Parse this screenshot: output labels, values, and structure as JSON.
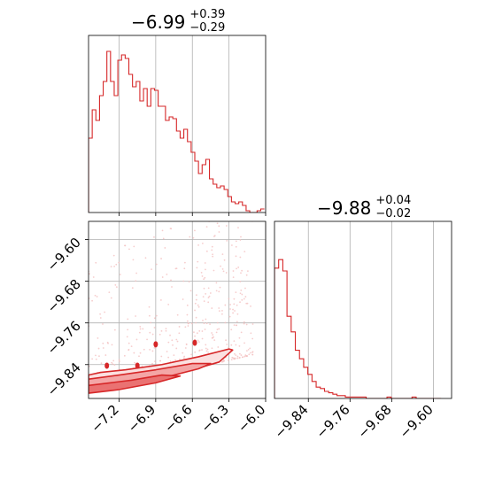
{
  "chart_data": [
    {
      "type": "histogram",
      "panel": "top-left",
      "title": {
        "value": "−6.99",
        "upper": "+0.39",
        "lower": "−0.29"
      },
      "xlim": [
        -7.45,
        -6.0
      ],
      "bins": [
        [
          -7.45,
          0.42
        ],
        [
          -7.42,
          0.58
        ],
        [
          -7.39,
          0.52
        ],
        [
          -7.36,
          0.66
        ],
        [
          -7.33,
          0.74
        ],
        [
          -7.3,
          0.91
        ],
        [
          -7.27,
          0.74
        ],
        [
          -7.24,
          0.66
        ],
        [
          -7.21,
          0.86
        ],
        [
          -7.18,
          0.89
        ],
        [
          -7.15,
          0.87
        ],
        [
          -7.12,
          0.78
        ],
        [
          -7.09,
          0.71
        ],
        [
          -7.06,
          0.74
        ],
        [
          -7.03,
          0.63
        ],
        [
          -7.0,
          0.7
        ],
        [
          -6.97,
          0.6
        ],
        [
          -6.94,
          0.7
        ],
        [
          -6.91,
          0.69
        ],
        [
          -6.88,
          0.6
        ],
        [
          -6.85,
          0.6
        ],
        [
          -6.82,
          0.52
        ],
        [
          -6.79,
          0.54
        ],
        [
          -6.76,
          0.53
        ],
        [
          -6.73,
          0.46
        ],
        [
          -6.7,
          0.42
        ],
        [
          -6.67,
          0.47
        ],
        [
          -6.64,
          0.4
        ],
        [
          -6.61,
          0.34
        ],
        [
          -6.58,
          0.29
        ],
        [
          -6.55,
          0.22
        ],
        [
          -6.52,
          0.27
        ],
        [
          -6.49,
          0.3
        ],
        [
          -6.46,
          0.19
        ],
        [
          -6.43,
          0.16
        ],
        [
          -6.4,
          0.14
        ],
        [
          -6.37,
          0.15
        ],
        [
          -6.34,
          0.13
        ],
        [
          -6.31,
          0.09
        ],
        [
          -6.28,
          0.06
        ],
        [
          -6.25,
          0.05
        ],
        [
          -6.22,
          0.06
        ],
        [
          -6.19,
          0.04
        ],
        [
          -6.16,
          0.01
        ],
        [
          -6.13,
          0.0
        ],
        [
          -6.1,
          0.0
        ],
        [
          -6.07,
          0.01
        ],
        [
          -6.04,
          0.02
        ]
      ],
      "bin_width": 0.03,
      "ylim": [
        0,
        1
      ],
      "grid_x": [
        -7.2,
        -6.9,
        -6.6,
        -6.3
      ]
    },
    {
      "type": "histogram",
      "panel": "bottom-right",
      "title": {
        "value": "−9.88",
        "upper": "+0.04",
        "lower": "−0.02"
      },
      "xlim": [
        -9.905,
        -9.565
      ],
      "xticks": [
        -9.84,
        -9.76,
        -9.68,
        -9.6
      ],
      "xticklabels": [
        "−9.84",
        "−9.76",
        "−9.68",
        "−9.60"
      ],
      "bins": [
        [
          -9.905,
          0.92
        ],
        [
          -9.897,
          0.98
        ],
        [
          -9.889,
          0.9
        ],
        [
          -9.881,
          0.58
        ],
        [
          -9.873,
          0.47
        ],
        [
          -9.865,
          0.34
        ],
        [
          -9.857,
          0.28
        ],
        [
          -9.849,
          0.22
        ],
        [
          -9.841,
          0.17
        ],
        [
          -9.833,
          0.12
        ],
        [
          -9.825,
          0.08
        ],
        [
          -9.817,
          0.07
        ],
        [
          -9.809,
          0.05
        ],
        [
          -9.801,
          0.04
        ],
        [
          -9.793,
          0.03
        ],
        [
          -9.785,
          0.02
        ],
        [
          -9.777,
          0.02
        ],
        [
          -9.769,
          0.01
        ],
        [
          -9.761,
          0.01
        ],
        [
          -9.753,
          0.01
        ],
        [
          -9.745,
          0.01
        ],
        [
          -9.737,
          0.01
        ],
        [
          -9.729,
          0.0
        ],
        [
          -9.721,
          0.0
        ],
        [
          -9.713,
          0.0
        ],
        [
          -9.705,
          0.0
        ],
        [
          -9.697,
          0.0
        ],
        [
          -9.689,
          0.01
        ],
        [
          -9.681,
          0.0
        ],
        [
          -9.673,
          0.0
        ],
        [
          -9.665,
          0.0
        ],
        [
          -9.657,
          0.0
        ],
        [
          -9.649,
          0.0
        ],
        [
          -9.641,
          0.01
        ],
        [
          -9.633,
          0.0
        ],
        [
          -9.625,
          0.0
        ],
        [
          -9.617,
          0.0
        ],
        [
          -9.609,
          0.0
        ],
        [
          -9.601,
          0.0
        ],
        [
          -9.593,
          0.0
        ]
      ],
      "bin_width": 0.008,
      "ylim": [
        0,
        1.25
      ],
      "grid_x": [
        -9.84,
        -9.76,
        -9.68,
        -9.6
      ]
    },
    {
      "type": "scatter",
      "panel": "bottom-left",
      "xlim": [
        -7.45,
        -6.0
      ],
      "ylim": [
        -9.905,
        -9.565
      ],
      "xticks": [
        -7.2,
        -6.9,
        -6.6,
        -6.3,
        -6.0
      ],
      "xticklabels": [
        "−7.2",
        "−6.9",
        "−6.6",
        "−6.3",
        "−6.0"
      ],
      "yticks": [
        -9.6,
        -9.68,
        -9.76,
        -9.84
      ],
      "yticklabels": [
        "−9.60",
        "−9.68",
        "−9.76",
        "−9.84"
      ],
      "grid": true,
      "contours": [
        [
          [
            -7.45,
            -9.893
          ],
          [
            -7.2,
            -9.885
          ],
          [
            -6.9,
            -9.865
          ],
          [
            -6.6,
            -9.85
          ],
          [
            -6.38,
            -9.835
          ],
          [
            -6.27,
            -9.812
          ],
          [
            -6.3,
            -9.81
          ],
          [
            -6.55,
            -9.825
          ],
          [
            -6.85,
            -9.84
          ],
          [
            -7.15,
            -9.85
          ],
          [
            -7.35,
            -9.855
          ],
          [
            -7.45,
            -9.86
          ]
        ],
        [
          [
            -7.45,
            -9.893
          ],
          [
            -7.1,
            -9.88
          ],
          [
            -6.8,
            -9.863
          ],
          [
            -6.55,
            -9.848
          ],
          [
            -6.45,
            -9.838
          ],
          [
            -6.6,
            -9.838
          ],
          [
            -6.9,
            -9.85
          ],
          [
            -7.2,
            -9.86
          ],
          [
            -7.45,
            -9.868
          ]
        ],
        [
          [
            -7.45,
            -9.895
          ],
          [
            -7.2,
            -9.888
          ],
          [
            -6.9,
            -9.875
          ],
          [
            -6.7,
            -9.862
          ],
          [
            -6.85,
            -9.86
          ],
          [
            -7.1,
            -9.87
          ],
          [
            -7.45,
            -9.88
          ]
        ]
      ],
      "contour_islands": [
        [
          -6.9,
          -9.801
        ],
        [
          -6.58,
          -9.798
        ],
        [
          -7.3,
          -9.842
        ],
        [
          -7.05,
          -9.842
        ]
      ],
      "point_color": "#f4c0c0",
      "line_color": "#d62728",
      "fill_colors": [
        "#fbe0e0",
        "#f4a6a6",
        "#ea7272"
      ]
    }
  ]
}
